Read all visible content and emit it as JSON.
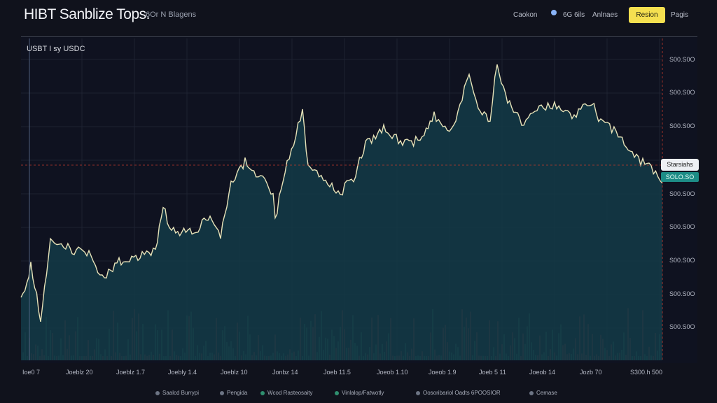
{
  "header": {
    "brand": "HIBT Sanblize Tops.",
    "subtitle": "6Or N Blagens",
    "nav": [
      "Caokon",
      "6G 6ils",
      "Anlnaes"
    ],
    "cta": "Resion",
    "login": "Pagis"
  },
  "chart": {
    "pair_label": "USBT I sy USDC",
    "price_tag": "Starsiahs",
    "price_value": "SOLO.SO",
    "accent": "#1d8c86",
    "line_color": "#e6e2b8",
    "area_color": "#133845",
    "y_labels": [
      "S00.S0O",
      "S00.S0O",
      "S00.S0O",
      "S00.S0O",
      "S00.S0O",
      "S00.S0O",
      "S00.S0O",
      "S00.S0O",
      "S00.S0O"
    ],
    "x_labels": [
      "Ioe0 7",
      "Joeblz 20",
      "Joeblz 1.7",
      "Joebly 1.4",
      "Joeblz 10",
      "Jonbz 14",
      "Joeb 11.5",
      "Joeob 1.10",
      "Joeob 1.9",
      "Joeb 5 11",
      "Joeob 14",
      "Jozb 70",
      "S300.h 500"
    ]
  },
  "footer": {
    "items": [
      "Saalcd Burrypi",
      "Pengida",
      "Wcod Rasteosaity",
      "Vinlalop/Fatwotly",
      "Oosoribariol Oadts 6POOSIOR",
      "Cemase"
    ]
  }
}
